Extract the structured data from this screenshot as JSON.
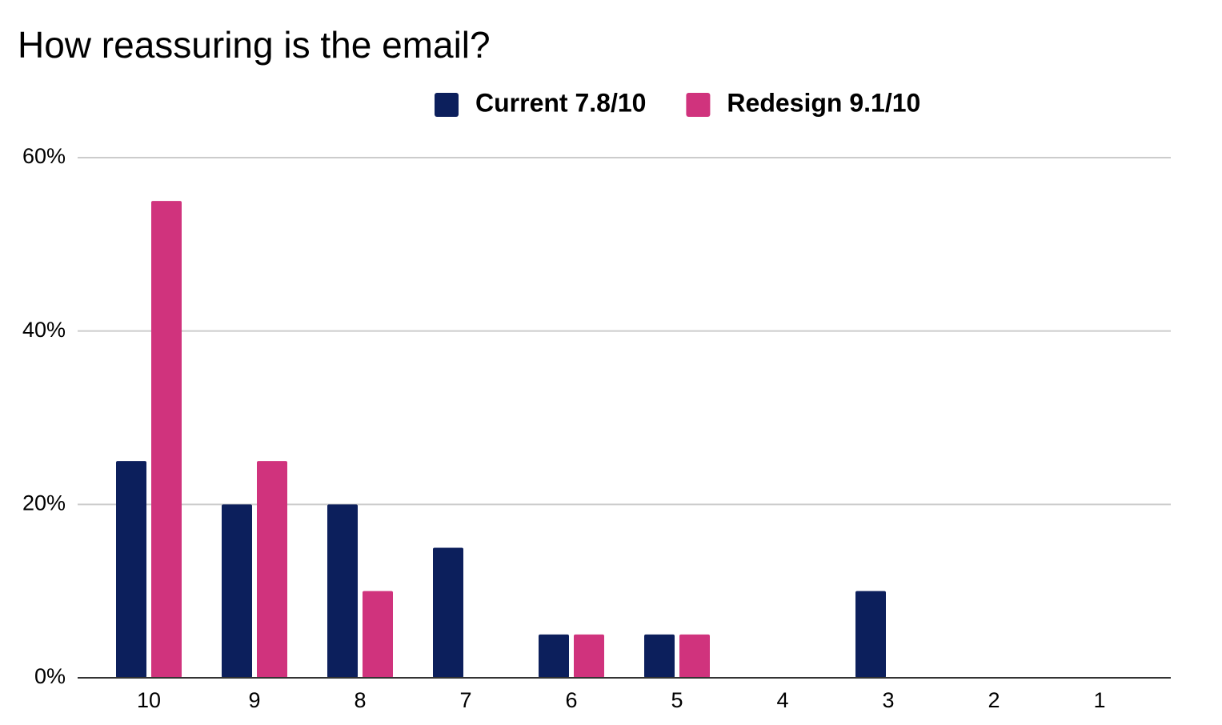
{
  "chart_data": {
    "type": "bar",
    "title": "How reassuring is the email?",
    "categories": [
      "10",
      "9",
      "8",
      "7",
      "6",
      "5",
      "4",
      "3",
      "2",
      "1"
    ],
    "series": [
      {
        "name": "Current 7.8/10",
        "color": "#0c1f5c",
        "values": [
          25,
          20,
          20,
          15,
          5,
          5,
          0,
          10,
          0,
          0
        ]
      },
      {
        "name": "Redesign 9.1/10",
        "color": "#d0337d",
        "values": [
          55,
          25,
          10,
          0,
          5,
          5,
          0,
          0,
          0,
          0
        ]
      }
    ],
    "ylim": [
      0,
      60
    ],
    "yticks": [
      {
        "value": 0,
        "label": "0%"
      },
      {
        "value": 20,
        "label": "20%"
      },
      {
        "value": 40,
        "label": "40%"
      },
      {
        "value": 60,
        "label": "60%"
      }
    ],
    "grid": true,
    "legend": "top"
  }
}
